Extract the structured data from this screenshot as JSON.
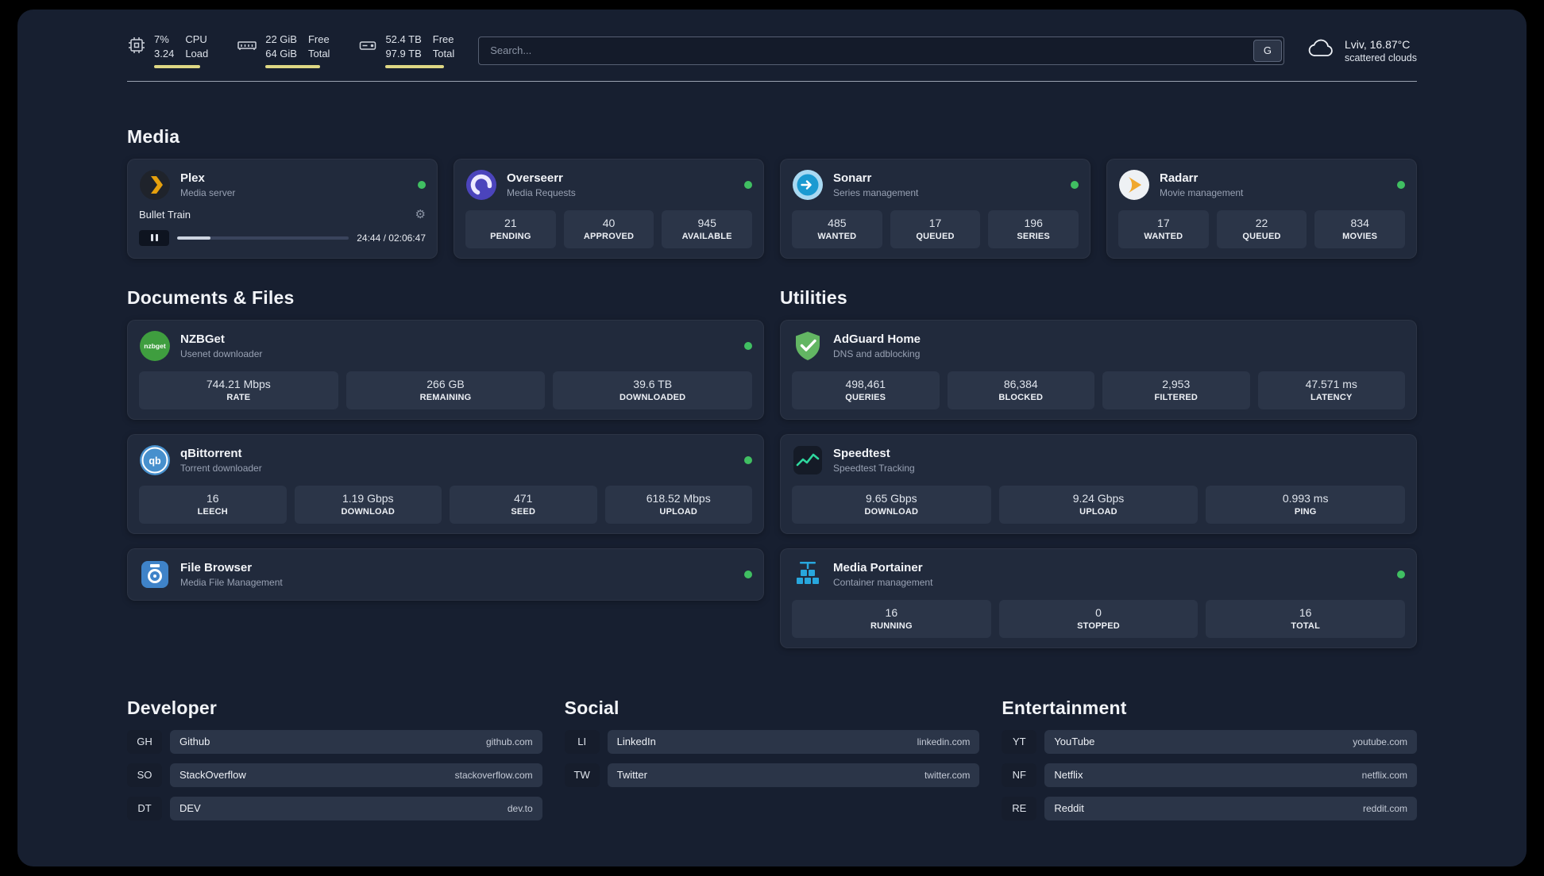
{
  "colors": {
    "status_green": "#40bf62",
    "meter_yellow": "#ded784",
    "panel_bg": "#171f30",
    "card_bg": "#212a3c",
    "tile_bg": "#2b3548"
  },
  "header": {
    "cpu": {
      "value_top": "7%",
      "value_bottom": "3.24",
      "label_top": "CPU",
      "label_bottom": "Load"
    },
    "ram": {
      "value_top": "22 GiB",
      "value_bottom": "64 GiB",
      "label_top": "Free",
      "label_bottom": "Total"
    },
    "disk": {
      "value_top": "52.4 TB",
      "value_bottom": "97.9 TB",
      "label_top": "Free",
      "label_bottom": "Total"
    },
    "search": {
      "placeholder": "Search...",
      "button_label": "G"
    },
    "weather": {
      "location": "Lviv, 16.87°C",
      "condition": "scattered clouds"
    }
  },
  "media": {
    "title": "Media",
    "plex": {
      "name": "Plex",
      "subtitle": "Media server",
      "icon": "plex-icon",
      "now_playing": "Bullet Train",
      "time": "24:44 / 02:06:47",
      "progress_percent": 19.5
    },
    "overseerr": {
      "name": "Overseerr",
      "subtitle": "Media Requests",
      "icon": "overseerr-icon",
      "stats": [
        {
          "value": "21",
          "label": "PENDING"
        },
        {
          "value": "40",
          "label": "APPROVED"
        },
        {
          "value": "945",
          "label": "AVAILABLE"
        }
      ]
    },
    "sonarr": {
      "name": "Sonarr",
      "subtitle": "Series management",
      "icon": "sonarr-icon",
      "stats": [
        {
          "value": "485",
          "label": "WANTED"
        },
        {
          "value": "17",
          "label": "QUEUED"
        },
        {
          "value": "196",
          "label": "SERIES"
        }
      ]
    },
    "radarr": {
      "name": "Radarr",
      "subtitle": "Movie management",
      "icon": "radarr-icon",
      "stats": [
        {
          "value": "17",
          "label": "WANTED"
        },
        {
          "value": "22",
          "label": "QUEUED"
        },
        {
          "value": "834",
          "label": "MOVIES"
        }
      ]
    }
  },
  "documents": {
    "title": "Documents & Files",
    "nzbget": {
      "name": "NZBGet",
      "subtitle": "Usenet downloader",
      "icon": "nzbget-icon",
      "icon_text": "nzbget",
      "stats": [
        {
          "value": "744.21 Mbps",
          "label": "RATE"
        },
        {
          "value": "266 GB",
          "label": "REMAINING"
        },
        {
          "value": "39.6 TB",
          "label": "DOWNLOADED"
        }
      ]
    },
    "qbittorrent": {
      "name": "qBittorrent",
      "subtitle": "Torrent downloader",
      "icon": "qbittorrent-icon",
      "icon_text": "qb",
      "stats": [
        {
          "value": "16",
          "label": "LEECH"
        },
        {
          "value": "1.19 Gbps",
          "label": "DOWNLOAD"
        },
        {
          "value": "471",
          "label": "SEED"
        },
        {
          "value": "618.52 Mbps",
          "label": "UPLOAD"
        }
      ]
    },
    "filebrowser": {
      "name": "File Browser",
      "subtitle": "Media File Management",
      "icon": "filebrowser-icon"
    }
  },
  "utilities": {
    "title": "Utilities",
    "adguard": {
      "name": "AdGuard Home",
      "subtitle": "DNS and adblocking",
      "icon": "adguard-icon",
      "stats": [
        {
          "value": "498,461",
          "label": "QUERIES"
        },
        {
          "value": "86,384",
          "label": "BLOCKED"
        },
        {
          "value": "2,953",
          "label": "FILTERED"
        },
        {
          "value": "47.571 ms",
          "label": "LATENCY"
        }
      ]
    },
    "speedtest": {
      "name": "Speedtest",
      "subtitle": "Speedtest Tracking",
      "icon": "speedtest-icon",
      "stats": [
        {
          "value": "9.65 Gbps",
          "label": "DOWNLOAD"
        },
        {
          "value": "9.24 Gbps",
          "label": "UPLOAD"
        },
        {
          "value": "0.993 ms",
          "label": "PING"
        }
      ]
    },
    "portainer": {
      "name": "Media Portainer",
      "subtitle": "Container management",
      "icon": "portainer-icon",
      "stats": [
        {
          "value": "16",
          "label": "RUNNING"
        },
        {
          "value": "0",
          "label": "STOPPED"
        },
        {
          "value": "16",
          "label": "TOTAL"
        }
      ]
    }
  },
  "links": {
    "developer": {
      "title": "Developer",
      "items": [
        {
          "badge": "GH",
          "name": "Github",
          "domain": "github.com"
        },
        {
          "badge": "SO",
          "name": "StackOverflow",
          "domain": "stackoverflow.com"
        },
        {
          "badge": "DT",
          "name": "DEV",
          "domain": "dev.to"
        }
      ]
    },
    "social": {
      "title": "Social",
      "items": [
        {
          "badge": "LI",
          "name": "LinkedIn",
          "domain": "linkedin.com"
        },
        {
          "badge": "TW",
          "name": "Twitter",
          "domain": "twitter.com"
        }
      ]
    },
    "entertainment": {
      "title": "Entertainment",
      "items": [
        {
          "badge": "YT",
          "name": "YouTube",
          "domain": "youtube.com"
        },
        {
          "badge": "NF",
          "name": "Netflix",
          "domain": "netflix.com"
        },
        {
          "badge": "RE",
          "name": "Reddit",
          "domain": "reddit.com"
        }
      ]
    }
  }
}
